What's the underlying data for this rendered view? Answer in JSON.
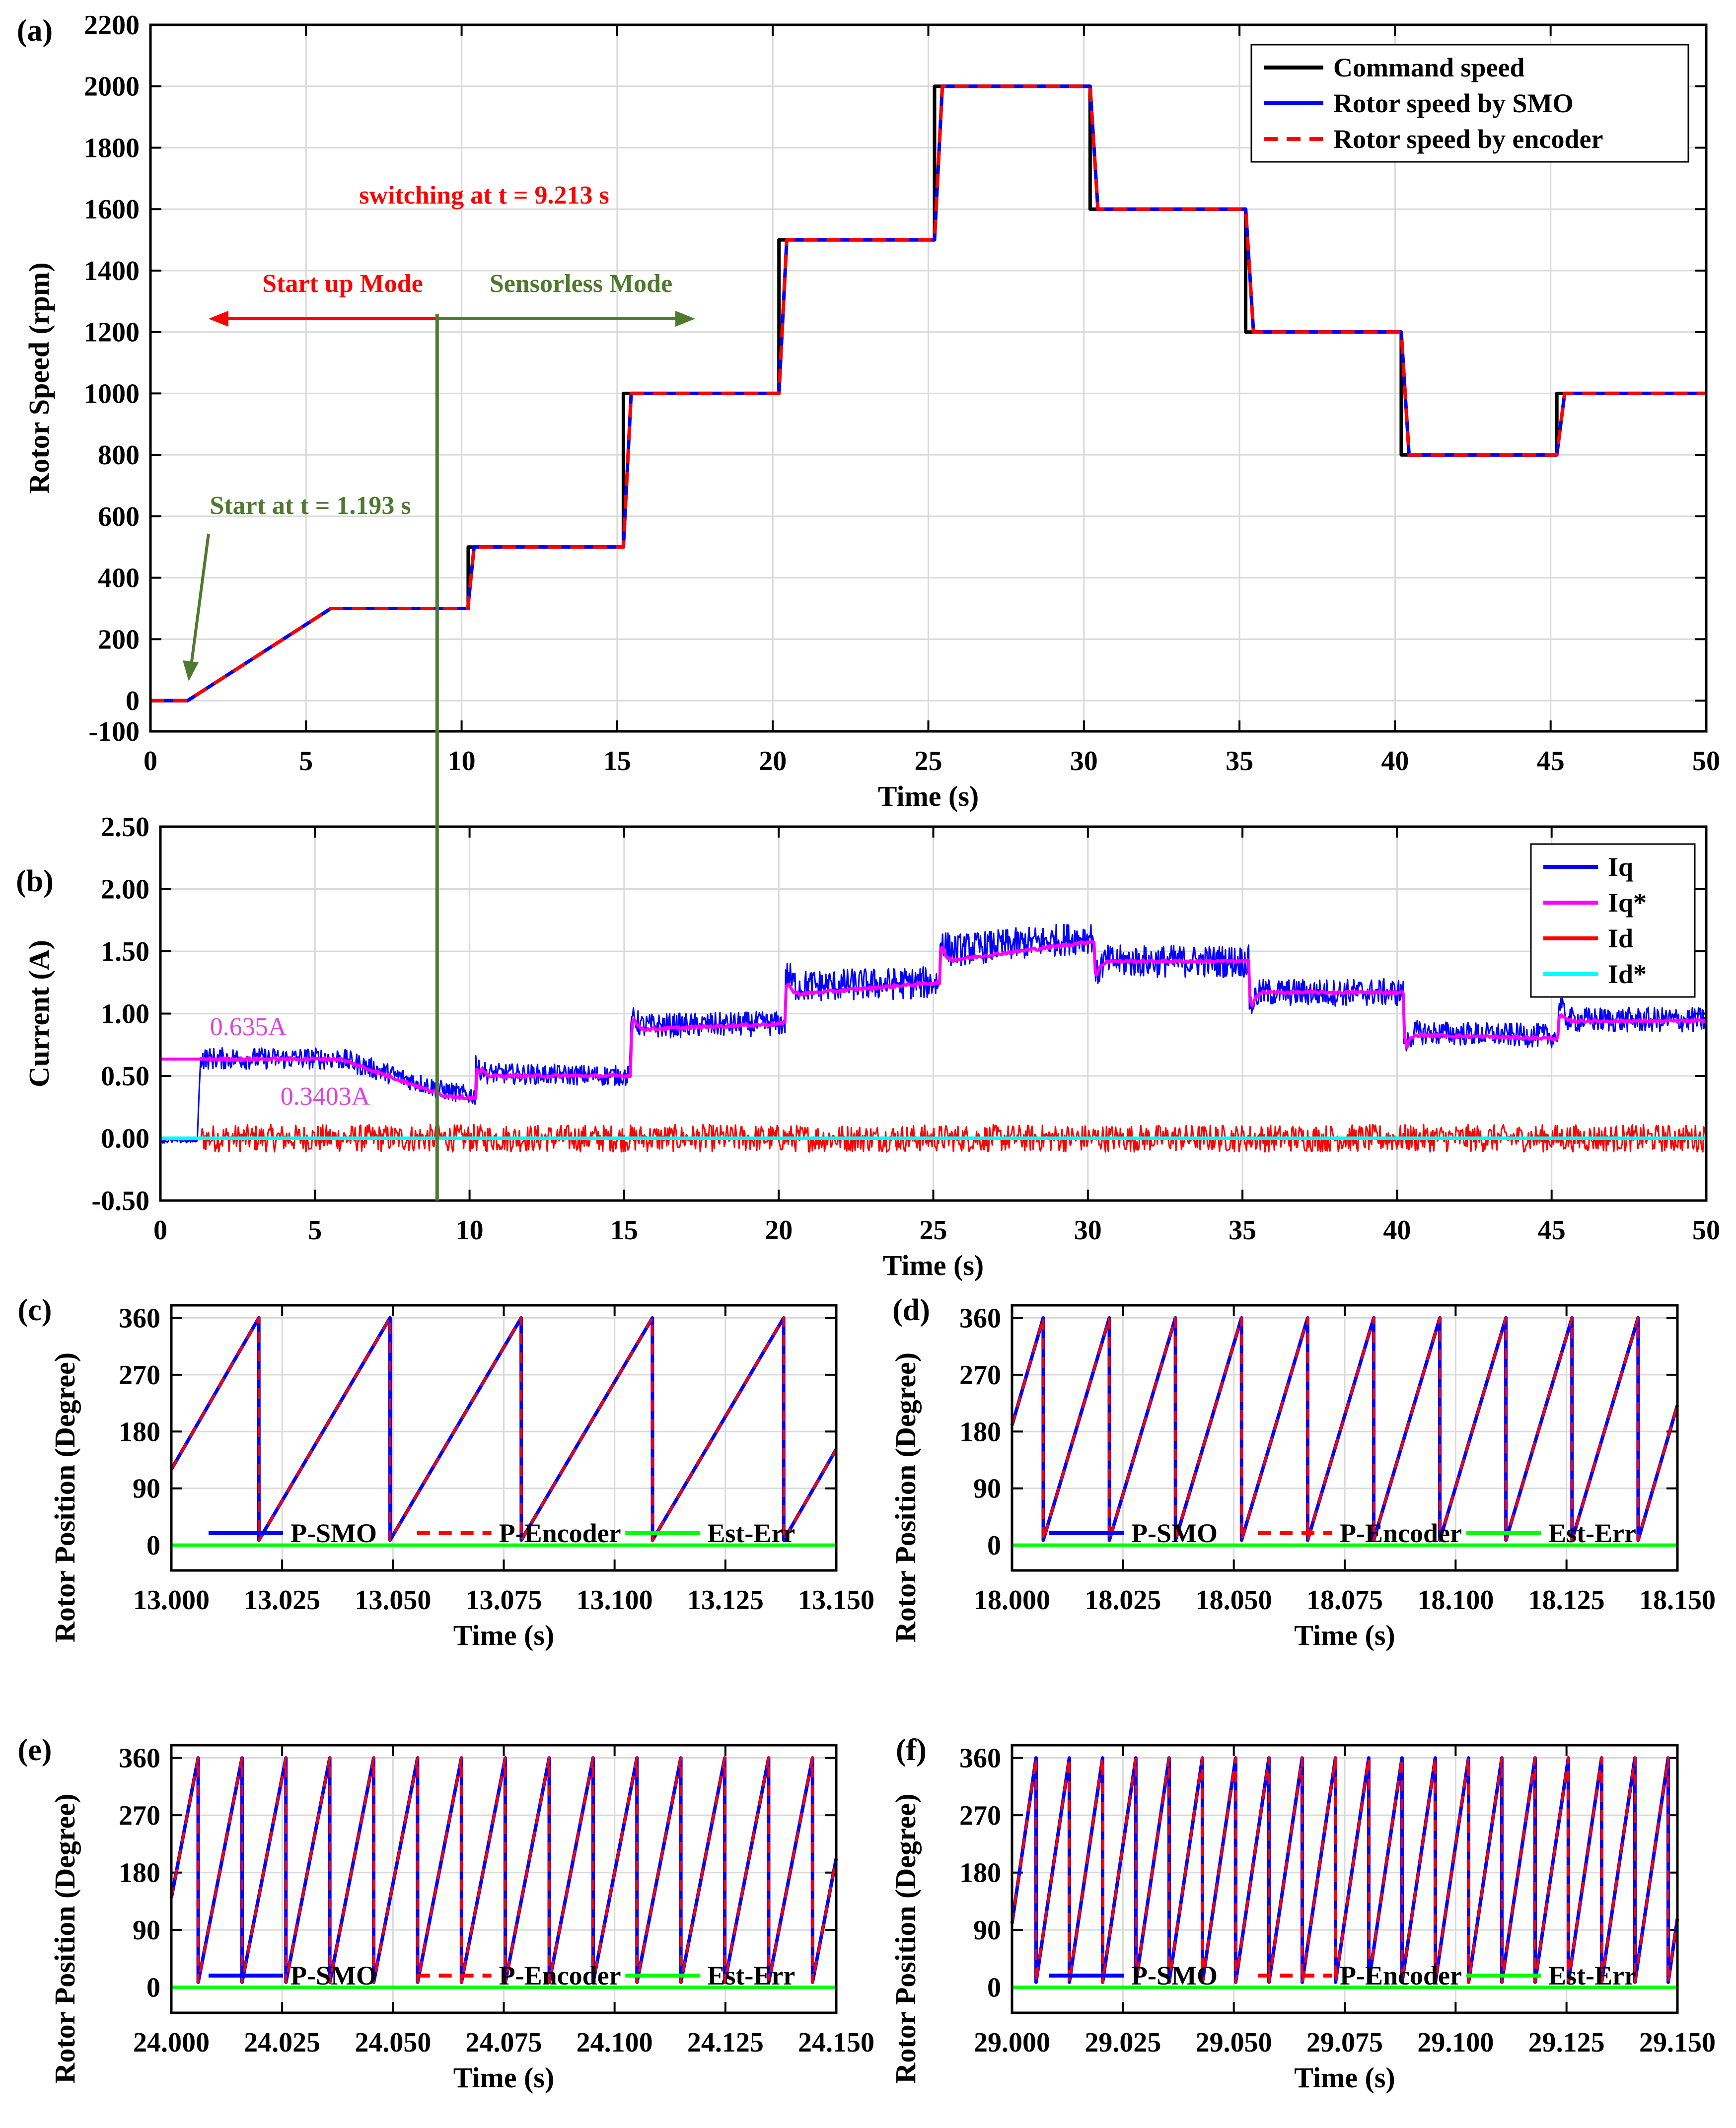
{
  "chart_data": [
    {
      "id": "a",
      "panel_label": "(a)",
      "type": "line",
      "xlabel": "Time (s)",
      "ylabel": "Rotor Speed (rpm)",
      "xlim": [
        0,
        50
      ],
      "ylim": [
        -100,
        2200
      ],
      "xticks": [
        0,
        5,
        10,
        15,
        20,
        25,
        30,
        35,
        40,
        45,
        50
      ],
      "yticks": [
        -100,
        0,
        200,
        400,
        600,
        800,
        1000,
        1200,
        1400,
        1600,
        1800,
        2000,
        2200
      ],
      "grid": true,
      "legend_position": "top-right",
      "series": [
        {
          "name": "Command speed",
          "color": "#000000",
          "style": "solid",
          "x": [
            0,
            1.193,
            5.8,
            10.213,
            10.213,
            15.2,
            15.2,
            20.2,
            20.2,
            25.2,
            25.2,
            30.2,
            30.2,
            35.2,
            35.2,
            40.2,
            40.2,
            45.2,
            45.2,
            50
          ],
          "y": [
            0,
            0,
            300,
            300,
            500,
            500,
            1000,
            1000,
            1500,
            1500,
            2000,
            2000,
            1600,
            1600,
            1200,
            1200,
            800,
            800,
            1000,
            1000
          ]
        },
        {
          "name": "Rotor speed by SMO",
          "color": "#0000ff",
          "style": "solid",
          "x": [
            0,
            1.193,
            5.8,
            10.2,
            10.4,
            15.2,
            15.45,
            20.2,
            20.45,
            25.2,
            25.45,
            30.2,
            30.45,
            35.2,
            35.45,
            40.2,
            40.45,
            45.2,
            45.45,
            50
          ],
          "y": [
            0,
            0,
            300,
            300,
            500,
            500,
            1000,
            1000,
            1500,
            1500,
            2000,
            2000,
            1600,
            1600,
            1200,
            1200,
            800,
            800,
            1000,
            1000
          ]
        },
        {
          "name": "Rotor speed by encoder",
          "color": "#ff0000",
          "style": "dashed",
          "x": [
            0,
            1.193,
            5.8,
            10.2,
            10.4,
            15.2,
            15.45,
            20.2,
            20.45,
            25.2,
            25.45,
            30.2,
            30.45,
            35.2,
            35.45,
            40.2,
            40.45,
            45.2,
            45.45,
            50
          ],
          "y": [
            0,
            0,
            300,
            300,
            500,
            500,
            1000,
            1000,
            1500,
            1500,
            2000,
            2000,
            1600,
            1600,
            1200,
            1200,
            800,
            800,
            1000,
            1000
          ]
        }
      ],
      "annotations": {
        "switching": "switching at t = 9.213 s",
        "startup_mode": "Start up Mode",
        "sensorless_mode": "Sensorless Mode",
        "start": "Start at t = 1.193 s"
      }
    },
    {
      "id": "b",
      "panel_label": "(b)",
      "type": "line",
      "xlabel": "Time (s)",
      "ylabel": "Current (A)",
      "xlim": [
        0,
        50
      ],
      "ylim": [
        -0.5,
        2.5
      ],
      "xticks": [
        0,
        5,
        10,
        15,
        20,
        25,
        30,
        35,
        40,
        45,
        50
      ],
      "yticks": [
        "-0.50",
        "0.00",
        "0.50",
        "1.00",
        "1.50",
        "2.00",
        "2.50"
      ],
      "grid": true,
      "legend_position": "top-right",
      "series": [
        {
          "name": "Iq",
          "color": "#0000ff",
          "x": [
            0,
            1.19,
            1.3,
            5.8,
            9.2,
            10.2,
            10.4,
            15.2,
            15.3,
            20.2,
            20.3,
            25.2,
            25.3,
            30.2,
            30.3,
            35.2,
            35.3,
            40.2,
            40.3,
            45.2,
            45.3,
            50
          ],
          "y": [
            -0.02,
            -0.02,
            0.64,
            0.64,
            0.38,
            0.34,
            0.52,
            0.5,
            0.9,
            0.92,
            1.22,
            1.25,
            1.5,
            1.62,
            1.42,
            1.42,
            1.17,
            1.17,
            0.85,
            0.82,
            0.95,
            0.95
          ]
        },
        {
          "name": "Iq*",
          "color": "#ff00ff",
          "x": [
            0,
            1.19,
            5.8,
            9.2,
            10.2,
            10.4,
            15.2,
            15.3,
            20.2,
            20.3,
            25.2,
            25.3,
            30.2,
            30.3,
            35.2,
            35.3,
            40.2,
            40.3,
            45.2,
            45.3,
            50
          ],
          "y": [
            0.635,
            0.635,
            0.635,
            0.3403,
            0.32,
            0.5,
            0.5,
            0.87,
            0.92,
            1.15,
            1.25,
            1.42,
            1.58,
            1.42,
            1.42,
            1.17,
            1.17,
            0.83,
            0.8,
            0.94,
            0.94
          ]
        },
        {
          "name": "Id",
          "color": "#ff0000",
          "x": [
            0,
            1.3,
            50
          ],
          "y": [
            0,
            0,
            0
          ]
        },
        {
          "name": "Id*",
          "color": "#00ffff",
          "x": [
            0,
            50
          ],
          "y": [
            0,
            0
          ]
        }
      ],
      "annotations": {
        "iq_initial": "0.635A",
        "iq_switch": "0.3403A"
      }
    },
    {
      "id": "c",
      "panel_label": "(c)",
      "type": "line",
      "xlabel": "Time (s)",
      "ylabel": "Rotor Position (Degree)",
      "xlim": [
        13.0,
        13.15
      ],
      "ylim": [
        -40,
        380
      ],
      "xticks": [
        "13.000",
        "13.025",
        "13.050",
        "13.075",
        "13.100",
        "13.125",
        "13.150"
      ],
      "yticks": [
        0,
        90,
        180,
        270,
        360
      ],
      "grid": true,
      "legend_position": "bottom",
      "electrical_period_s": 0.0296,
      "phase_start_deg": 120,
      "series": [
        {
          "name": "P-SMO",
          "color": "#0000ff"
        },
        {
          "name": "P-Encoder",
          "color": "#ff0000"
        },
        {
          "name": "Est-Err",
          "color": "#00ff00",
          "value": 0
        }
      ]
    },
    {
      "id": "d",
      "panel_label": "(d)",
      "type": "line",
      "xlabel": "Time (s)",
      "ylabel": "Rotor Position (Degree)",
      "xlim": [
        18.0,
        18.15
      ],
      "ylim": [
        -40,
        380
      ],
      "xticks": [
        "18.000",
        "18.025",
        "18.050",
        "18.075",
        "18.100",
        "18.125",
        "18.150"
      ],
      "yticks": [
        0,
        90,
        180,
        270,
        360
      ],
      "grid": true,
      "legend_position": "bottom",
      "electrical_period_s": 0.0149,
      "phase_start_deg": 190,
      "series": [
        {
          "name": "P-SMO",
          "color": "#0000ff"
        },
        {
          "name": "P-Encoder",
          "color": "#ff0000"
        },
        {
          "name": "Est-Err",
          "color": "#00ff00",
          "value": 0
        }
      ]
    },
    {
      "id": "e",
      "panel_label": "(e)",
      "type": "line",
      "xlabel": "Time (s)",
      "ylabel": "Rotor Position (Degree)",
      "xlim": [
        24.0,
        24.15
      ],
      "ylim": [
        -40,
        380
      ],
      "xticks": [
        "24.000",
        "24.025",
        "24.050",
        "24.075",
        "24.100",
        "24.125",
        "24.150"
      ],
      "yticks": [
        0,
        90,
        180,
        270,
        360
      ],
      "grid": true,
      "legend_position": "bottom",
      "electrical_period_s": 0.0099,
      "phase_start_deg": 140,
      "series": [
        {
          "name": "P-SMO",
          "color": "#0000ff"
        },
        {
          "name": "P-Encoder",
          "color": "#ff0000"
        },
        {
          "name": "Est-Err",
          "color": "#00ff00",
          "value": 0
        }
      ]
    },
    {
      "id": "f",
      "panel_label": "(f)",
      "type": "line",
      "xlabel": "Time (s)",
      "ylabel": "Rotor Position (Degree)",
      "xlim": [
        29.0,
        29.15
      ],
      "ylim": [
        -40,
        380
      ],
      "xticks": [
        "29.000",
        "29.025",
        "29.050",
        "29.075",
        "29.100",
        "29.125",
        "29.150"
      ],
      "yticks": [
        0,
        90,
        180,
        270,
        360
      ],
      "grid": true,
      "legend_position": "bottom",
      "electrical_period_s": 0.0075,
      "phase_start_deg": 100,
      "series": [
        {
          "name": "P-SMO",
          "color": "#0000ff"
        },
        {
          "name": "P-Encoder",
          "color": "#ff0000"
        },
        {
          "name": "Est-Err",
          "color": "#00ff00",
          "value": 0
        }
      ]
    }
  ],
  "switch_time_s": 9.213,
  "colors": {
    "switch_line": "#4e7a2f",
    "annotation_red": "#ff0000",
    "annotation_green": "#4e7a2f",
    "annotation_magenta": "#e040e0"
  }
}
